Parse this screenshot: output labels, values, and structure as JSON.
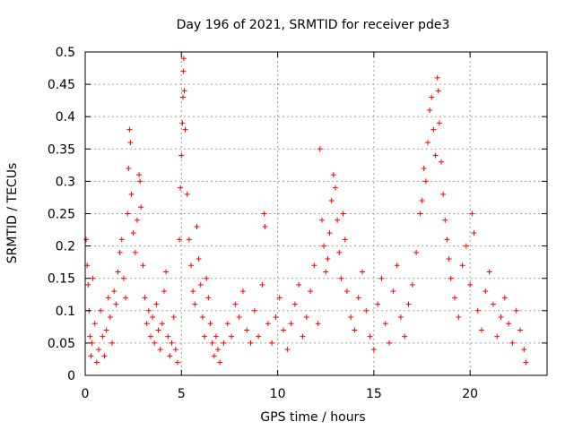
{
  "chart_data": {
    "type": "scatter",
    "title": "Day 196 of 2021, SRMTID for receiver pde3",
    "xlabel": "GPS time / hours",
    "ylabel": "SRMTID / TECUs",
    "xlim": [
      0,
      24
    ],
    "ylim": [
      0,
      0.5
    ],
    "xticks": [
      0,
      5,
      10,
      15,
      20
    ],
    "xtick_labels": [
      "0",
      "5",
      "10",
      "15",
      "20"
    ],
    "yticks": [
      0,
      0.05,
      0.1,
      0.15,
      0.2,
      0.25,
      0.3,
      0.35,
      0.4,
      0.45,
      0.5
    ],
    "ytick_labels": [
      "0",
      "0.05",
      "0.1",
      "0.15",
      "0.2",
      "0.25",
      "0.3",
      "0.35",
      "0.4",
      "0.45",
      "0.5"
    ],
    "grid": true,
    "marker": "+",
    "color": "#ff0000",
    "series": [
      {
        "name": "SRMTID",
        "points": [
          [
            0.05,
            0.21
          ],
          [
            0.1,
            0.17
          ],
          [
            0.15,
            0.14
          ],
          [
            0.2,
            0.1
          ],
          [
            0.25,
            0.06
          ],
          [
            0.3,
            0.03
          ],
          [
            0.35,
            0.05
          ],
          [
            0.4,
            0.15
          ],
          [
            0.5,
            0.08
          ],
          [
            0.6,
            0.02
          ],
          [
            0.7,
            0.04
          ],
          [
            0.8,
            0.1
          ],
          [
            0.9,
            0.06
          ],
          [
            1.0,
            0.03
          ],
          [
            1.1,
            0.07
          ],
          [
            1.2,
            0.12
          ],
          [
            1.3,
            0.09
          ],
          [
            1.4,
            0.05
          ],
          [
            1.5,
            0.13
          ],
          [
            1.6,
            0.11
          ],
          [
            1.7,
            0.16
          ],
          [
            1.8,
            0.19
          ],
          [
            1.9,
            0.21
          ],
          [
            2.0,
            0.15
          ],
          [
            2.1,
            0.12
          ],
          [
            2.2,
            0.25
          ],
          [
            2.25,
            0.32
          ],
          [
            2.3,
            0.38
          ],
          [
            2.35,
            0.36
          ],
          [
            2.4,
            0.28
          ],
          [
            2.5,
            0.22
          ],
          [
            2.6,
            0.19
          ],
          [
            2.7,
            0.24
          ],
          [
            2.8,
            0.31
          ],
          [
            2.85,
            0.3
          ],
          [
            2.9,
            0.26
          ],
          [
            3.0,
            0.17
          ],
          [
            3.1,
            0.12
          ],
          [
            3.2,
            0.08
          ],
          [
            3.3,
            0.1
          ],
          [
            3.4,
            0.06
          ],
          [
            3.5,
            0.09
          ],
          [
            3.6,
            0.05
          ],
          [
            3.7,
            0.11
          ],
          [
            3.8,
            0.07
          ],
          [
            3.9,
            0.04
          ],
          [
            4.0,
            0.08
          ],
          [
            4.1,
            0.13
          ],
          [
            4.2,
            0.16
          ],
          [
            4.3,
            0.06
          ],
          [
            4.4,
            0.03
          ],
          [
            4.5,
            0.05
          ],
          [
            4.6,
            0.09
          ],
          [
            4.7,
            0.04
          ],
          [
            4.8,
            0.02
          ],
          [
            4.9,
            0.21
          ],
          [
            4.95,
            0.29
          ],
          [
            5.0,
            0.34
          ],
          [
            5.05,
            0.39
          ],
          [
            5.08,
            0.43
          ],
          [
            5.1,
            0.47
          ],
          [
            5.12,
            0.49
          ],
          [
            5.15,
            0.44
          ],
          [
            5.2,
            0.38
          ],
          [
            5.3,
            0.28
          ],
          [
            5.4,
            0.21
          ],
          [
            5.5,
            0.17
          ],
          [
            5.6,
            0.13
          ],
          [
            5.7,
            0.11
          ],
          [
            5.8,
            0.23
          ],
          [
            5.9,
            0.18
          ],
          [
            6.0,
            0.14
          ],
          [
            6.1,
            0.09
          ],
          [
            6.2,
            0.06
          ],
          [
            6.3,
            0.15
          ],
          [
            6.4,
            0.12
          ],
          [
            6.5,
            0.08
          ],
          [
            6.6,
            0.05
          ],
          [
            6.7,
            0.03
          ],
          [
            6.8,
            0.06
          ],
          [
            6.9,
            0.04
          ],
          [
            7.0,
            0.02
          ],
          [
            7.2,
            0.05
          ],
          [
            7.4,
            0.08
          ],
          [
            7.6,
            0.06
          ],
          [
            7.8,
            0.11
          ],
          [
            8.0,
            0.09
          ],
          [
            8.2,
            0.13
          ],
          [
            8.4,
            0.07
          ],
          [
            8.6,
            0.05
          ],
          [
            8.8,
            0.1
          ],
          [
            9.0,
            0.06
          ],
          [
            9.2,
            0.14
          ],
          [
            9.3,
            0.25
          ],
          [
            9.35,
            0.23
          ],
          [
            9.5,
            0.08
          ],
          [
            9.7,
            0.05
          ],
          [
            9.9,
            0.09
          ],
          [
            10.1,
            0.12
          ],
          [
            10.3,
            0.07
          ],
          [
            10.5,
            0.04
          ],
          [
            10.7,
            0.08
          ],
          [
            10.9,
            0.11
          ],
          [
            11.1,
            0.14
          ],
          [
            11.3,
            0.06
          ],
          [
            11.5,
            0.09
          ],
          [
            11.7,
            0.13
          ],
          [
            11.9,
            0.17
          ],
          [
            12.1,
            0.08
          ],
          [
            12.2,
            0.35
          ],
          [
            12.3,
            0.24
          ],
          [
            12.4,
            0.2
          ],
          [
            12.5,
            0.16
          ],
          [
            12.6,
            0.18
          ],
          [
            12.7,
            0.22
          ],
          [
            12.8,
            0.27
          ],
          [
            12.9,
            0.31
          ],
          [
            13.0,
            0.29
          ],
          [
            13.1,
            0.24
          ],
          [
            13.2,
            0.19
          ],
          [
            13.3,
            0.15
          ],
          [
            13.4,
            0.25
          ],
          [
            13.5,
            0.21
          ],
          [
            13.6,
            0.13
          ],
          [
            13.8,
            0.09
          ],
          [
            14.0,
            0.07
          ],
          [
            14.2,
            0.12
          ],
          [
            14.4,
            0.16
          ],
          [
            14.6,
            0.1
          ],
          [
            14.8,
            0.06
          ],
          [
            15.0,
            0.04
          ],
          [
            15.2,
            0.11
          ],
          [
            15.4,
            0.15
          ],
          [
            15.6,
            0.08
          ],
          [
            15.8,
            0.05
          ],
          [
            16.0,
            0.13
          ],
          [
            16.2,
            0.17
          ],
          [
            16.4,
            0.09
          ],
          [
            16.6,
            0.06
          ],
          [
            16.8,
            0.11
          ],
          [
            17.0,
            0.14
          ],
          [
            17.2,
            0.19
          ],
          [
            17.4,
            0.25
          ],
          [
            17.5,
            0.27
          ],
          [
            17.6,
            0.32
          ],
          [
            17.7,
            0.3
          ],
          [
            17.8,
            0.36
          ],
          [
            17.9,
            0.41
          ],
          [
            18.0,
            0.43
          ],
          [
            18.1,
            0.38
          ],
          [
            18.2,
            0.34
          ],
          [
            18.3,
            0.46
          ],
          [
            18.35,
            0.44
          ],
          [
            18.4,
            0.39
          ],
          [
            18.5,
            0.33
          ],
          [
            18.6,
            0.28
          ],
          [
            18.7,
            0.24
          ],
          [
            18.8,
            0.21
          ],
          [
            18.9,
            0.18
          ],
          [
            19.0,
            0.15
          ],
          [
            19.2,
            0.12
          ],
          [
            19.4,
            0.09
          ],
          [
            19.6,
            0.17
          ],
          [
            19.8,
            0.2
          ],
          [
            20.0,
            0.14
          ],
          [
            20.1,
            0.25
          ],
          [
            20.2,
            0.22
          ],
          [
            20.4,
            0.1
          ],
          [
            20.6,
            0.07
          ],
          [
            20.8,
            0.13
          ],
          [
            21.0,
            0.16
          ],
          [
            21.2,
            0.11
          ],
          [
            21.4,
            0.06
          ],
          [
            21.6,
            0.09
          ],
          [
            21.8,
            0.12
          ],
          [
            22.0,
            0.08
          ],
          [
            22.2,
            0.05
          ],
          [
            22.4,
            0.1
          ],
          [
            22.6,
            0.07
          ],
          [
            22.8,
            0.04
          ],
          [
            22.9,
            0.02
          ]
        ]
      }
    ]
  }
}
